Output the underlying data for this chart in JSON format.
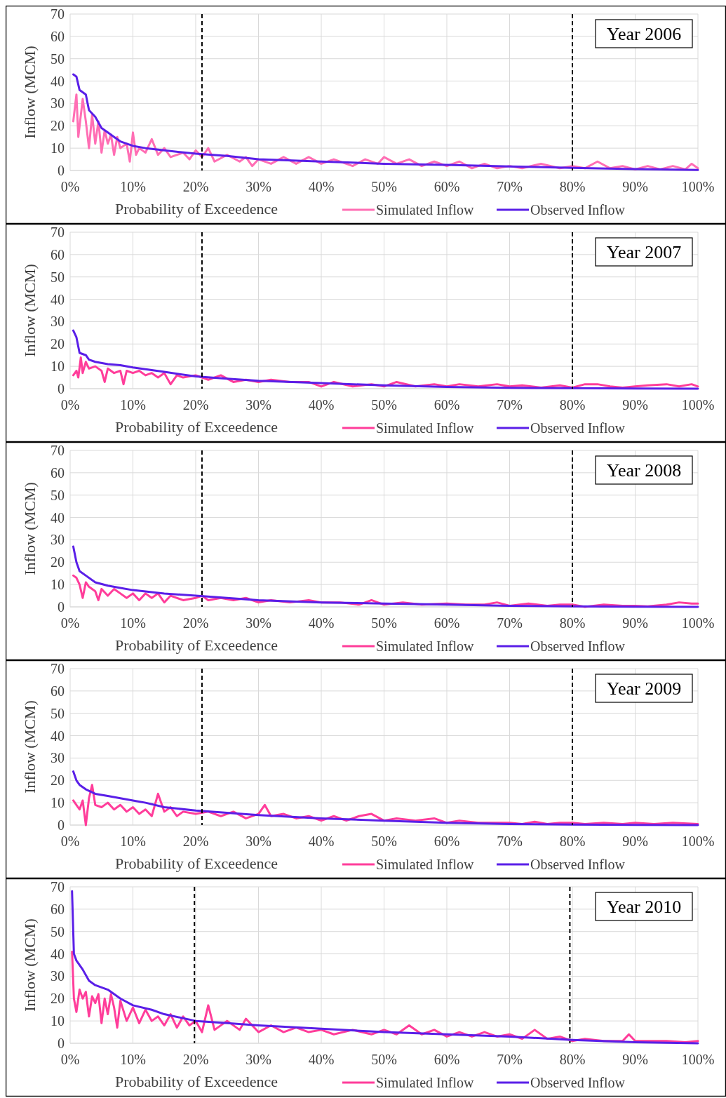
{
  "chart_data": [
    {
      "type": "line",
      "ylabel": "Inflow (MCM)",
      "xlabel": "Probability of Exceedence",
      "annotations": [
        "Year 2006"
      ],
      "xlim": [
        0,
        100
      ],
      "ylim": [
        0,
        70
      ],
      "xticks": [
        {
          "value": 0,
          "label": "0%"
        },
        {
          "value": 10,
          "label": "10%"
        },
        {
          "value": 20,
          "label": "20%"
        },
        {
          "value": 30,
          "label": "30%"
        },
        {
          "value": 40,
          "label": "40%"
        },
        {
          "value": 50,
          "label": "50%"
        },
        {
          "value": 60,
          "label": "60%"
        },
        {
          "value": 70,
          "label": "70%"
        },
        {
          "value": 80,
          "label": "80%"
        },
        {
          "value": 90,
          "label": "90%"
        },
        {
          "value": 100,
          "label": "100%"
        }
      ],
      "yticks": [
        0,
        10,
        20,
        30,
        40,
        50,
        60,
        70
      ],
      "grid": true,
      "legend": "bottom right",
      "ref_lines": [
        {
          "axis": "x",
          "value": 21,
          "color": "#000000",
          "line_style": "dashed"
        },
        {
          "axis": "x",
          "value": 80,
          "color": "#000000",
          "line_style": "dashed"
        }
      ],
      "series": [
        {
          "name": "Simulated Inflow",
          "color": "#ff6eb4",
          "x": [
            0.5,
            1,
            1.3,
            2,
            2.5,
            3,
            3.5,
            4,
            4.5,
            5,
            5.5,
            6,
            6.5,
            7,
            7.5,
            8,
            9,
            9.5,
            10,
            10.5,
            11,
            12,
            13,
            14,
            15,
            16,
            18,
            19,
            20,
            21,
            22,
            23,
            25,
            27,
            28,
            29,
            30,
            32,
            34,
            36,
            38,
            40,
            42,
            45,
            47,
            49,
            50,
            52,
            54,
            56,
            58,
            60,
            62,
            64,
            66,
            68,
            70,
            72,
            75,
            78,
            80,
            82,
            84,
            86,
            88,
            90,
            92,
            94,
            96,
            98,
            99,
            100
          ],
          "values": [
            22,
            34,
            15,
            32,
            22,
            10,
            25,
            12,
            22,
            8,
            18,
            12,
            16,
            7,
            15,
            10,
            12,
            4,
            17,
            7,
            10,
            8,
            14,
            7,
            10,
            6,
            8,
            5,
            9,
            6,
            10,
            4,
            7,
            4,
            6,
            2,
            5,
            3,
            6,
            3,
            6,
            3,
            5,
            2,
            5,
            3,
            6,
            3,
            5,
            2,
            4,
            2,
            4,
            1,
            3,
            1,
            2,
            1,
            3,
            1,
            2,
            1,
            4,
            1,
            2,
            0.5,
            2,
            0.5,
            2,
            0.5,
            3,
            1
          ]
        },
        {
          "name": "Observed Inflow",
          "color": "#5a1fe8",
          "x": [
            0.5,
            1,
            1.5,
            2.5,
            3,
            4,
            5,
            6,
            7,
            8,
            10,
            12,
            15,
            20,
            25,
            30,
            40,
            50,
            60,
            70,
            80,
            90,
            100
          ],
          "values": [
            43,
            42,
            36,
            34,
            27,
            24,
            19,
            17,
            15,
            13,
            11,
            10,
            9,
            7.5,
            6.5,
            5,
            4,
            3,
            2.5,
            1.8,
            1.2,
            0.6,
            0.2
          ]
        }
      ]
    },
    {
      "type": "line",
      "ylabel": "Inflow (MCM)",
      "xlabel": "Probability of Exceedence",
      "annotations": [
        "Year 2007"
      ],
      "xlim": [
        0,
        100
      ],
      "ylim": [
        0,
        70
      ],
      "xticks": [
        {
          "value": 0,
          "label": "0%"
        },
        {
          "value": 10,
          "label": "10%"
        },
        {
          "value": 20,
          "label": "20%"
        },
        {
          "value": 30,
          "label": "30%"
        },
        {
          "value": 40,
          "label": "40%"
        },
        {
          "value": 50,
          "label": "50%"
        },
        {
          "value": 60,
          "label": "60%"
        },
        {
          "value": 70,
          "label": "70%"
        },
        {
          "value": 80,
          "label": "80%"
        },
        {
          "value": 90,
          "label": "90%"
        },
        {
          "value": 100,
          "label": "100%"
        }
      ],
      "yticks": [
        0,
        10,
        20,
        30,
        40,
        50,
        60,
        70
      ],
      "grid": true,
      "legend": "bottom right",
      "ref_lines": [
        {
          "axis": "x",
          "value": 21,
          "color": "#000000",
          "line_style": "dashed"
        },
        {
          "axis": "x",
          "value": 80,
          "color": "#000000",
          "line_style": "dashed"
        }
      ],
      "series": [
        {
          "name": "Simulated Inflow",
          "color": "#ff3d9a",
          "x": [
            0.5,
            1,
            1.3,
            1.7,
            2,
            2.5,
            3,
            4,
            5,
            5.5,
            6,
            7,
            8,
            8.5,
            9,
            10,
            11,
            12,
            13,
            14,
            15,
            16,
            17,
            18,
            20,
            22,
            24,
            26,
            28,
            30,
            32,
            35,
            38,
            40,
            42,
            45,
            48,
            50,
            52,
            55,
            58,
            60,
            62,
            65,
            68,
            70,
            72,
            75,
            78,
            80,
            82,
            84,
            86,
            88,
            90,
            92,
            95,
            97,
            99,
            100
          ],
          "values": [
            6,
            8,
            5,
            14,
            7,
            12,
            9,
            10,
            8,
            3,
            9,
            7,
            8,
            2,
            8,
            7,
            8,
            6,
            7,
            5,
            7,
            2,
            6,
            5,
            6,
            4,
            6,
            3,
            4,
            3,
            4,
            3,
            3,
            1,
            3,
            1,
            2,
            1,
            3,
            1,
            2,
            1,
            2,
            1,
            2,
            1,
            1.5,
            0.5,
            1.5,
            0.5,
            2,
            2,
            1,
            0.5,
            1,
            1.5,
            2,
            1,
            2,
            1
          ]
        },
        {
          "name": "Observed Inflow",
          "color": "#5a1fe8",
          "x": [
            0.5,
            1,
            1.5,
            2.5,
            3,
            4,
            6,
            8,
            10,
            15,
            20,
            25,
            30,
            40,
            50,
            60,
            70,
            80,
            90,
            100
          ],
          "values": [
            26,
            23,
            16,
            15,
            13,
            12,
            11,
            10.5,
            9.5,
            7.5,
            5.5,
            4.5,
            3.5,
            2.5,
            1.5,
            0.8,
            0.4,
            0.2,
            0.1,
            0
          ]
        }
      ]
    },
    {
      "type": "line",
      "ylabel": "Inflow (MCM)",
      "xlabel": "Probability of Exceedence",
      "annotations": [
        "Year 2008"
      ],
      "xlim": [
        0,
        100
      ],
      "ylim": [
        0,
        70
      ],
      "xticks": [
        {
          "value": 0,
          "label": "0%"
        },
        {
          "value": 10,
          "label": "10%"
        },
        {
          "value": 20,
          "label": "20%"
        },
        {
          "value": 30,
          "label": "30%"
        },
        {
          "value": 40,
          "label": "40%"
        },
        {
          "value": 50,
          "label": "50%"
        },
        {
          "value": 60,
          "label": "60%"
        },
        {
          "value": 70,
          "label": "70%"
        },
        {
          "value": 80,
          "label": "80%"
        },
        {
          "value": 90,
          "label": "90%"
        },
        {
          "value": 100,
          "label": "100%"
        }
      ],
      "yticks": [
        0,
        10,
        20,
        30,
        40,
        50,
        60,
        70
      ],
      "grid": true,
      "legend": "bottom right",
      "ref_lines": [
        {
          "axis": "x",
          "value": 21,
          "color": "#000000",
          "line_style": "dashed"
        },
        {
          "axis": "x",
          "value": 80,
          "color": "#000000",
          "line_style": "dashed"
        }
      ],
      "series": [
        {
          "name": "Simulated Inflow",
          "color": "#ff3d9a",
          "x": [
            0.5,
            1,
            1.5,
            2,
            2.5,
            3,
            4,
            4.5,
            5,
            6,
            7,
            8,
            9,
            10,
            11,
            12,
            13,
            14,
            15,
            16,
            18,
            20,
            21,
            22,
            24,
            26,
            28,
            30,
            32,
            35,
            38,
            40,
            43,
            46,
            48,
            50,
            53,
            56,
            60,
            63,
            66,
            68,
            70,
            73,
            76,
            78,
            80,
            82,
            85,
            88,
            90,
            92,
            95,
            97,
            99,
            100
          ],
          "values": [
            14,
            13,
            10,
            4,
            11,
            9,
            7,
            3,
            8,
            5,
            8,
            6,
            4,
            6,
            3,
            6,
            4,
            6,
            2,
            5,
            3,
            4,
            5,
            3,
            4,
            3,
            4,
            2,
            3,
            2,
            3,
            2,
            2,
            1,
            3,
            1,
            2,
            1,
            1.5,
            1,
            1,
            2,
            0.5,
            1.5,
            0.5,
            1,
            1,
            0,
            1,
            0.5,
            0.5,
            0.2,
            1,
            2,
            1.5,
            1.5
          ]
        },
        {
          "name": "Observed Inflow",
          "color": "#5a1fe8",
          "x": [
            0.5,
            1,
            1.5,
            2.5,
            4,
            6,
            8,
            10,
            15,
            20,
            25,
            30,
            40,
            50,
            60,
            70,
            80,
            90,
            100
          ],
          "values": [
            27,
            20,
            16,
            14,
            11,
            9.5,
            8.5,
            7.5,
            6,
            5,
            4,
            3,
            2,
            1.5,
            1,
            0.5,
            0.2,
            0.1,
            0
          ]
        }
      ]
    },
    {
      "type": "line",
      "ylabel": "Inflow (MCM)",
      "xlabel": "Probability of Exceedence",
      "annotations": [
        "Year 2009"
      ],
      "xlim": [
        0,
        100
      ],
      "ylim": [
        0,
        70
      ],
      "xticks": [
        {
          "value": 0,
          "label": "0%"
        },
        {
          "value": 10,
          "label": "10%"
        },
        {
          "value": 20,
          "label": "20%"
        },
        {
          "value": 30,
          "label": "30%"
        },
        {
          "value": 40,
          "label": "40%"
        },
        {
          "value": 50,
          "label": "50%"
        },
        {
          "value": 60,
          "label": "60%"
        },
        {
          "value": 70,
          "label": "70%"
        },
        {
          "value": 80,
          "label": "80%"
        },
        {
          "value": 90,
          "label": "90%"
        },
        {
          "value": 100,
          "label": "100%"
        }
      ],
      "yticks": [
        0,
        10,
        20,
        30,
        40,
        50,
        60,
        70
      ],
      "grid": true,
      "legend": "bottom right",
      "ref_lines": [
        {
          "axis": "x",
          "value": 21,
          "color": "#000000",
          "line_style": "dashed"
        },
        {
          "axis": "x",
          "value": 80,
          "color": "#000000",
          "line_style": "dashed"
        }
      ],
      "series": [
        {
          "name": "Simulated Inflow",
          "color": "#ff3d9a",
          "x": [
            0.5,
            1,
            1.5,
            2,
            2.5,
            3,
            3.5,
            4,
            5,
            6,
            7,
            8,
            9,
            10,
            11,
            12,
            13,
            14,
            15,
            16,
            17,
            18,
            20,
            22,
            24,
            26,
            28,
            30,
            31,
            32,
            34,
            36,
            38,
            40,
            42,
            44,
            46,
            48,
            50,
            52,
            55,
            58,
            60,
            62,
            65,
            68,
            70,
            72,
            74,
            76,
            78,
            80,
            82,
            85,
            88,
            90,
            93,
            96,
            100
          ],
          "values": [
            11,
            9,
            7,
            11,
            0,
            12,
            18,
            9,
            8,
            10,
            7,
            9,
            6,
            8,
            5,
            7,
            4,
            14,
            6,
            8,
            4,
            6,
            5,
            6,
            4,
            6,
            3,
            5,
            9,
            4,
            5,
            3,
            4,
            2,
            4,
            2,
            4,
            5,
            2,
            3,
            2,
            3,
            1,
            2,
            1,
            1,
            1,
            0.5,
            1.5,
            0.5,
            1,
            1,
            0.5,
            1,
            0.5,
            1,
            0.5,
            1,
            0.5
          ]
        },
        {
          "name": "Observed Inflow",
          "color": "#5a1fe8",
          "x": [
            0.5,
            1,
            1.5,
            2.5,
            4,
            6,
            8,
            10,
            12,
            15,
            20,
            25,
            30,
            40,
            50,
            60,
            70,
            80,
            90,
            100
          ],
          "values": [
            24,
            20,
            18,
            16,
            14,
            13,
            12,
            11,
            10,
            8,
            6.5,
            5.5,
            4.5,
            3,
            2,
            1,
            0.5,
            0.2,
            0.1,
            0
          ]
        }
      ]
    },
    {
      "type": "line",
      "ylabel": "Inflow (MCM)",
      "xlabel": "Probability of Exceedence",
      "annotations": [
        "Year 2010"
      ],
      "xlim": [
        0,
        100
      ],
      "ylim": [
        0,
        70
      ],
      "xticks": [
        {
          "value": 0,
          "label": "0%"
        },
        {
          "value": 10,
          "label": "10%"
        },
        {
          "value": 20,
          "label": "20%"
        },
        {
          "value": 30,
          "label": "30%"
        },
        {
          "value": 40,
          "label": "40%"
        },
        {
          "value": 50,
          "label": "50%"
        },
        {
          "value": 60,
          "label": "60%"
        },
        {
          "value": 70,
          "label": "70%"
        },
        {
          "value": 80,
          "label": "80%"
        },
        {
          "value": 90,
          "label": "90%"
        },
        {
          "value": 100,
          "label": "100%"
        }
      ],
      "yticks": [
        0,
        10,
        20,
        30,
        40,
        50,
        60,
        70
      ],
      "grid": true,
      "legend": "bottom right",
      "ref_lines": [
        {
          "axis": "x",
          "value": 19.8,
          "color": "#000000",
          "line_style": "dashed"
        },
        {
          "axis": "x",
          "value": 79.6,
          "color": "#000000",
          "line_style": "dashed"
        }
      ],
      "series": [
        {
          "name": "Simulated Inflow",
          "color": "#ff3d9a",
          "x": [
            0.3,
            0.6,
            1,
            1.5,
            2,
            2.5,
            3,
            3.5,
            4,
            4.5,
            5,
            5.5,
            6,
            6.5,
            7,
            7.5,
            8,
            9,
            10,
            11,
            12,
            13,
            14,
            15,
            16,
            17,
            18,
            19,
            20,
            21,
            22,
            23,
            25,
            27,
            28,
            30,
            32,
            34,
            36,
            38,
            40,
            42,
            45,
            48,
            50,
            52,
            54,
            56,
            58,
            60,
            62,
            64,
            66,
            68,
            70,
            72,
            74,
            76,
            78,
            80,
            82,
            85,
            88,
            89,
            90,
            92,
            95,
            98,
            100
          ],
          "values": [
            41,
            20,
            14,
            24,
            20,
            23,
            12,
            21,
            18,
            22,
            9,
            20,
            13,
            22,
            16,
            7,
            19,
            10,
            16,
            9,
            15,
            10,
            12,
            8,
            13,
            7,
            12,
            8,
            10,
            5,
            17,
            6,
            10,
            6,
            11,
            5,
            8,
            5,
            7,
            5,
            6,
            4,
            6,
            4,
            6,
            4,
            8,
            4,
            6,
            3,
            5,
            3,
            5,
            3,
            4,
            2,
            6,
            2,
            3,
            1,
            2,
            1,
            1,
            4,
            1,
            1,
            1,
            0.5,
            1
          ]
        },
        {
          "name": "Observed Inflow",
          "color": "#5a1fe8",
          "x": [
            0.3,
            0.6,
            1,
            2,
            3,
            4,
            6,
            8,
            10,
            13,
            15,
            20,
            25,
            30,
            40,
            50,
            60,
            70,
            80,
            90,
            100
          ],
          "values": [
            68,
            40,
            37,
            33,
            28,
            26,
            24,
            20,
            17,
            15,
            13,
            10,
            9,
            8,
            6.5,
            5,
            4,
            3,
            1.5,
            0.5,
            0
          ]
        }
      ]
    }
  ]
}
